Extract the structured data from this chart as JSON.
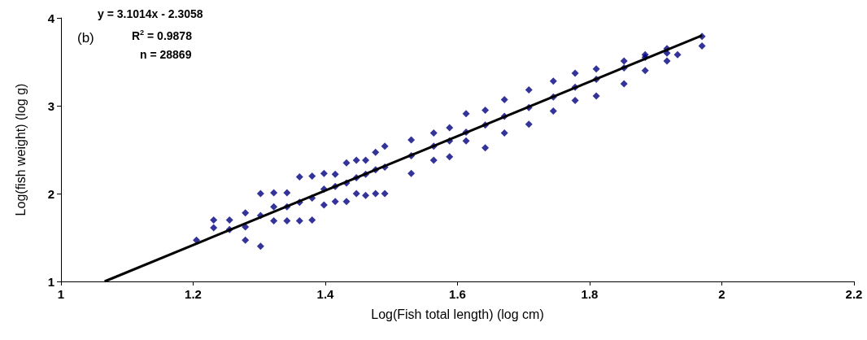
{
  "chart_data": {
    "type": "scatter",
    "xlabel": "Log(Fish total length) (log cm)",
    "ylabel": "Log(fish weight) (log g)",
    "annotations": [
      "(b)",
      "y = 3.1014x - 2.3058",
      "R$^{2}$ = 0.9878",
      "n = 28869"
    ],
    "xlim": [
      1,
      2.2
    ],
    "xticks": [
      1,
      1.2,
      1.4,
      1.6,
      1.8,
      2,
      2.2
    ],
    "ylim": [
      1,
      4
    ],
    "yticks": [
      1,
      2,
      3,
      4
    ],
    "grid": false,
    "marker": "diamond",
    "series": [
      {
        "color": "#000080",
        "x": [
          1.205,
          1.231,
          1.231,
          1.255,
          1.255,
          1.279,
          1.279,
          1.279,
          1.302,
          1.302,
          1.302,
          1.322,
          1.322,
          1.322,
          1.342,
          1.342,
          1.342,
          1.361,
          1.361,
          1.361,
          1.38,
          1.38,
          1.38,
          1.398,
          1.398,
          1.398,
          1.415,
          1.415,
          1.415,
          1.432,
          1.432,
          1.432,
          1.447,
          1.447,
          1.447,
          1.461,
          1.461,
          1.461,
          1.476,
          1.476,
          1.476,
          1.49,
          1.49,
          1.49,
          1.53,
          1.53,
          1.53,
          1.564,
          1.564,
          1.564,
          1.588,
          1.588,
          1.588,
          1.613,
          1.613,
          1.613,
          1.642,
          1.642,
          1.642,
          1.671,
          1.671,
          1.671,
          1.708,
          1.708,
          1.708,
          1.745,
          1.745,
          1.745,
          1.778,
          1.778,
          1.778,
          1.81,
          1.81,
          1.81,
          1.852,
          1.852,
          1.852,
          1.884,
          1.884,
          1.884,
          1.917,
          1.917,
          1.917,
          1.933,
          1.97,
          1.97
        ],
        "values": [
          1.47,
          1.7,
          1.61,
          1.7,
          1.59,
          1.78,
          1.62,
          1.47,
          2.0,
          1.75,
          1.4,
          2.01,
          1.85,
          1.69,
          2.01,
          1.85,
          1.69,
          2.19,
          1.9,
          1.69,
          2.2,
          1.95,
          1.7,
          2.23,
          2.05,
          1.87,
          2.22,
          2.08,
          1.91,
          2.35,
          2.12,
          1.91,
          2.38,
          2.18,
          2.0,
          2.38,
          2.22,
          1.98,
          2.47,
          2.27,
          2.0,
          2.54,
          2.3,
          2.0,
          2.61,
          2.43,
          2.23,
          2.69,
          2.54,
          2.38,
          2.75,
          2.6,
          2.42,
          2.91,
          2.7,
          2.6,
          2.95,
          2.78,
          2.52,
          3.07,
          2.88,
          2.69,
          3.18,
          2.98,
          2.79,
          3.28,
          3.1,
          2.94,
          3.37,
          3.21,
          3.06,
          3.42,
          3.3,
          3.11,
          3.51,
          3.43,
          3.25,
          3.58,
          3.55,
          3.4,
          3.65,
          3.6,
          3.51,
          3.58,
          3.79,
          3.68
        ]
      },
      {
        "type": "line",
        "marker": "none",
        "color": "#000000",
        "x": [
          1.066,
          1.97
        ],
        "values": [
          1.0,
          3.8
        ]
      }
    ]
  }
}
